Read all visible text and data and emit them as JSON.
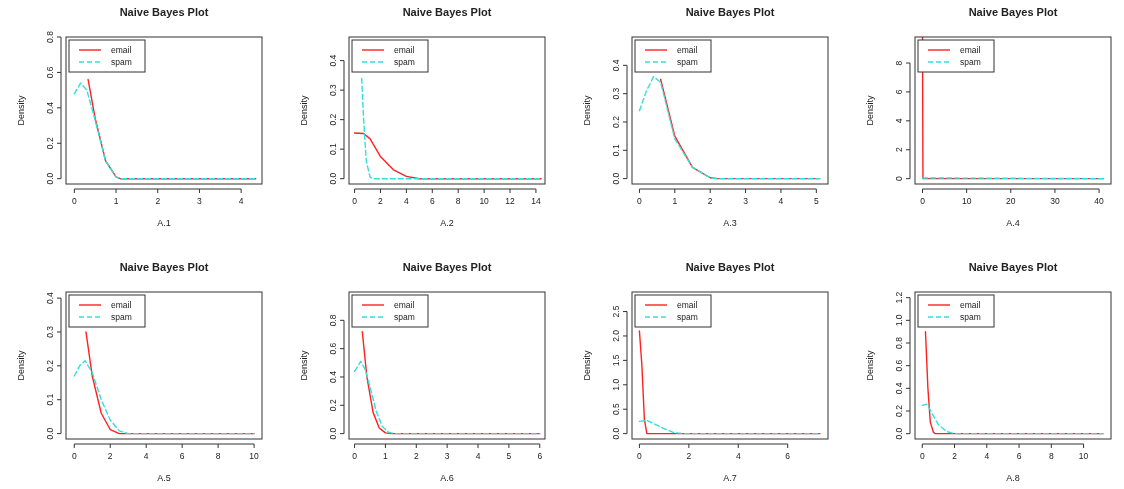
{
  "chart_data": [
    {
      "type": "line",
      "title": "Naive Bayes Plot",
      "xlabel": "A.1",
      "ylabel": "Density",
      "legend": "top left",
      "grid": false,
      "xlim": [
        -0.2,
        4.5
      ],
      "ylim": [
        -0.03,
        0.8
      ],
      "xticks": [
        0,
        1,
        2,
        3,
        4
      ],
      "yticks": [
        {
          "value": 0,
          "label": "0.0"
        },
        0.2,
        0.4,
        0.6,
        0.8
      ],
      "series": [
        {
          "name": "email",
          "color": "#ff2020",
          "line_style": "solid",
          "x": [
            0.33,
            0.5,
            0.75,
            1,
            1.1,
            4.35
          ],
          "values": [
            0.56,
            0.34,
            0.1,
            0.01,
            0,
            0
          ]
        },
        {
          "name": "spam",
          "color": "#30e0e0",
          "line_style": "dashed",
          "x": [
            0,
            0.15,
            0.3,
            0.5,
            0.75,
            1,
            1.1,
            4.35
          ],
          "values": [
            0.48,
            0.54,
            0.5,
            0.33,
            0.1,
            0.01,
            0,
            0
          ]
        }
      ]
    },
    {
      "type": "line",
      "title": "Naive Bayes Plot",
      "xlabel": "A.2",
      "ylabel": "Density",
      "legend": "top left",
      "grid": false,
      "xlim": [
        -0.43,
        14.7
      ],
      "ylim": [
        -0.018,
        0.48
      ],
      "xticks": [
        0,
        2,
        4,
        6,
        8,
        10,
        12,
        14
      ],
      "yticks": [
        {
          "value": 0,
          "label": "0.0"
        },
        0.1,
        0.2,
        0.3,
        0.4
      ],
      "series": [
        {
          "name": "email",
          "color": "#ff2020",
          "line_style": "solid",
          "x": [
            0,
            0.7,
            1.2,
            2,
            3,
            4,
            5,
            14.4
          ],
          "values": [
            0.155,
            0.153,
            0.135,
            0.075,
            0.03,
            0.008,
            0,
            0
          ]
        },
        {
          "name": "spam",
          "color": "#30e0e0",
          "line_style": "dashed",
          "x": [
            0.55,
            0.7,
            0.9,
            1.2,
            1.4,
            14.4
          ],
          "values": [
            0.34,
            0.2,
            0.06,
            0.005,
            0,
            0
          ]
        }
      ]
    },
    {
      "type": "line",
      "title": "Naive Bayes Plot",
      "xlabel": "A.3",
      "ylabel": "Density",
      "legend": "top left",
      "grid": false,
      "xlim": [
        -0.21,
        5.33
      ],
      "ylim": [
        -0.019,
        0.5
      ],
      "xticks": [
        0,
        1,
        2,
        3,
        4,
        5
      ],
      "yticks": [
        {
          "value": 0,
          "label": "0.0"
        },
        0.1,
        0.2,
        0.3,
        0.4
      ],
      "series": [
        {
          "name": "email",
          "color": "#ff2020",
          "line_style": "solid",
          "x": [
            0.6,
            1,
            1.5,
            2,
            2.2,
            5.1
          ],
          "values": [
            0.35,
            0.15,
            0.04,
            0.003,
            0,
            0
          ]
        },
        {
          "name": "spam",
          "color": "#30e0e0",
          "line_style": "dashed",
          "x": [
            0,
            0.2,
            0.4,
            0.6,
            1,
            1.5,
            2,
            2.2,
            5.1
          ],
          "values": [
            0.24,
            0.31,
            0.36,
            0.34,
            0.14,
            0.04,
            0.003,
            0,
            0
          ]
        }
      ]
    },
    {
      "type": "line",
      "title": "Naive Bayes Plot",
      "xlabel": "A.4",
      "ylabel": "Density",
      "legend": "top left",
      "grid": false,
      "xlim": [
        -1.7,
        42.7
      ],
      "ylim": [
        -0.37,
        9.8
      ],
      "xticks": [
        0,
        10,
        20,
        30,
        40
      ],
      "yticks": [
        0,
        2,
        4,
        6,
        8
      ],
      "series": [
        {
          "name": "email",
          "color": "#ff2020",
          "line_style": "solid",
          "x": [
            0,
            0.1,
            41
          ],
          "values": [
            9.8,
            0,
            0
          ]
        },
        {
          "name": "spam",
          "color": "#30e0e0",
          "line_style": "dashed",
          "x": [
            0,
            41
          ],
          "values": [
            0.05,
            0
          ]
        }
      ]
    },
    {
      "type": "line",
      "title": "Naive Bayes Plot",
      "xlabel": "A.5",
      "ylabel": "Density",
      "legend": "top left",
      "grid": false,
      "xlim": [
        -0.46,
        10.44
      ],
      "ylim": [
        -0.016,
        0.418
      ],
      "xticks": [
        0,
        2,
        4,
        6,
        8,
        10
      ],
      "yticks": [
        {
          "value": 0,
          "label": "0.0"
        },
        0.1,
        0.2,
        0.3,
        0.4
      ],
      "series": [
        {
          "name": "email",
          "color": "#ff2020",
          "line_style": "solid",
          "x": [
            0.65,
            1,
            1.5,
            2,
            2.5,
            10
          ],
          "values": [
            0.3,
            0.17,
            0.06,
            0.012,
            0,
            0
          ]
        },
        {
          "name": "spam",
          "color": "#30e0e0",
          "line_style": "dashed",
          "x": [
            0,
            0.3,
            0.6,
            1,
            1.5,
            2,
            2.5,
            3,
            10
          ],
          "values": [
            0.17,
            0.2,
            0.215,
            0.18,
            0.1,
            0.04,
            0.008,
            0,
            0
          ]
        }
      ]
    },
    {
      "type": "line",
      "title": "Naive Bayes Plot",
      "xlabel": "A.6",
      "ylabel": "Density",
      "legend": "top left",
      "grid": false,
      "xlim": [
        -0.18,
        6.17
      ],
      "ylim": [
        -0.038,
        1.0
      ],
      "xticks": [
        0,
        1,
        2,
        3,
        4,
        5,
        6
      ],
      "yticks": [
        {
          "value": 0,
          "label": "0.0"
        },
        0.2,
        0.4,
        0.6,
        0.8
      ],
      "series": [
        {
          "name": "email",
          "color": "#ff2020",
          "line_style": "solid",
          "x": [
            0.25,
            0.4,
            0.6,
            0.8,
            1,
            1.2,
            6
          ],
          "values": [
            0.72,
            0.4,
            0.15,
            0.04,
            0.005,
            0,
            0
          ]
        },
        {
          "name": "spam",
          "color": "#30e0e0",
          "line_style": "dashed",
          "x": [
            0,
            0.2,
            0.35,
            0.5,
            0.7,
            0.9,
            1.1,
            1.3,
            6
          ],
          "values": [
            0.44,
            0.51,
            0.45,
            0.33,
            0.16,
            0.05,
            0.01,
            0,
            0
          ]
        }
      ]
    },
    {
      "type": "line",
      "title": "Naive Bayes Plot",
      "xlabel": "A.7",
      "ylabel": "Density",
      "legend": "top left",
      "grid": false,
      "xlim": [
        -0.3,
        7.63
      ],
      "ylim": [
        -0.11,
        2.9
      ],
      "xticks": [
        0,
        2,
        4,
        6
      ],
      "yticks": [
        {
          "value": 0,
          "label": "0.0"
        },
        0.5,
        {
          "value": 1,
          "label": "1.0"
        },
        1.5,
        {
          "value": 2,
          "label": "2.0"
        },
        2.5
      ],
      "series": [
        {
          "name": "email",
          "color": "#ff2020",
          "line_style": "solid",
          "x": [
            0,
            0.1,
            0.2,
            0.3,
            7.3
          ],
          "values": [
            2.1,
            1.4,
            0.3,
            0,
            0
          ]
        },
        {
          "name": "spam",
          "color": "#30e0e0",
          "line_style": "dashed",
          "x": [
            0,
            0.3,
            0.6,
            1,
            1.4,
            1.8,
            7.3
          ],
          "values": [
            0.25,
            0.27,
            0.2,
            0.1,
            0.02,
            0,
            0
          ]
        }
      ]
    },
    {
      "type": "line",
      "title": "Naive Bayes Plot",
      "xlabel": "A.8",
      "ylabel": "Density",
      "legend": "top left",
      "grid": false,
      "xlim": [
        -0.45,
        11.7
      ],
      "ylim": [
        -0.047,
        1.25
      ],
      "xticks": [
        0,
        2,
        4,
        6,
        8,
        10
      ],
      "yticks": [
        {
          "value": 0,
          "label": "0.0"
        },
        0.2,
        0.4,
        0.6,
        0.8,
        {
          "value": 1,
          "label": "1.0"
        },
        1.2
      ],
      "series": [
        {
          "name": "email",
          "color": "#ff2020",
          "line_style": "solid",
          "x": [
            0.2,
            0.35,
            0.5,
            0.7,
            0.8,
            11.2
          ],
          "values": [
            0.9,
            0.4,
            0.1,
            0.01,
            0,
            0
          ]
        },
        {
          "name": "spam",
          "color": "#30e0e0",
          "line_style": "dashed",
          "x": [
            0,
            0.3,
            0.6,
            1,
            1.5,
            2,
            11.2
          ],
          "values": [
            0.25,
            0.26,
            0.18,
            0.08,
            0.02,
            0,
            0
          ]
        }
      ]
    }
  ]
}
